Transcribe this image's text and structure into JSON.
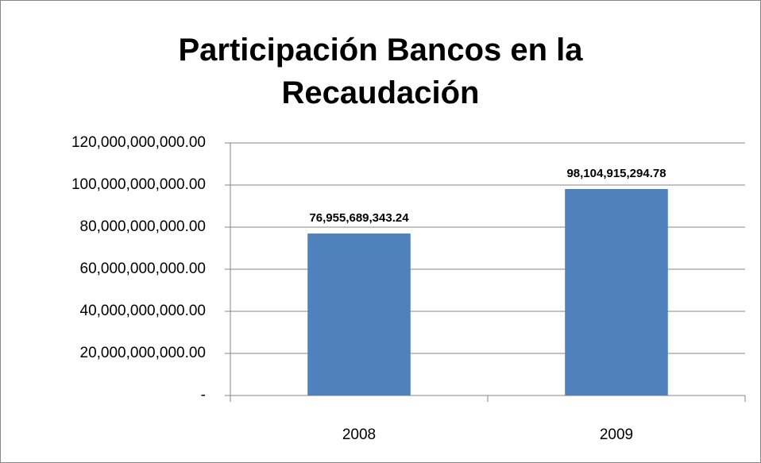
{
  "chart_data": {
    "type": "bar",
    "title": "Participación Bancos en la Recaudación",
    "categories": [
      "2008",
      "2009"
    ],
    "values": [
      76955689343.24,
      98104915294.78
    ],
    "value_labels": [
      "76,955,689,343.24",
      "98,104,915,294.78"
    ],
    "color": "#4f81bd",
    "ylim": [
      0,
      120000000000
    ],
    "yticks": [
      {
        "value": 0,
        "label": "-"
      },
      {
        "value": 20000000000,
        "label": "20,000,000,000.00"
      },
      {
        "value": 40000000000,
        "label": "40,000,000,000.00"
      },
      {
        "value": 60000000000,
        "label": "60,000,000,000.00"
      },
      {
        "value": 80000000000,
        "label": "80,000,000,000.00"
      },
      {
        "value": 100000000000,
        "label": "100,000,000,000.00"
      },
      {
        "value": 120000000000,
        "label": "120,000,000,000.00"
      }
    ],
    "grid": true
  }
}
